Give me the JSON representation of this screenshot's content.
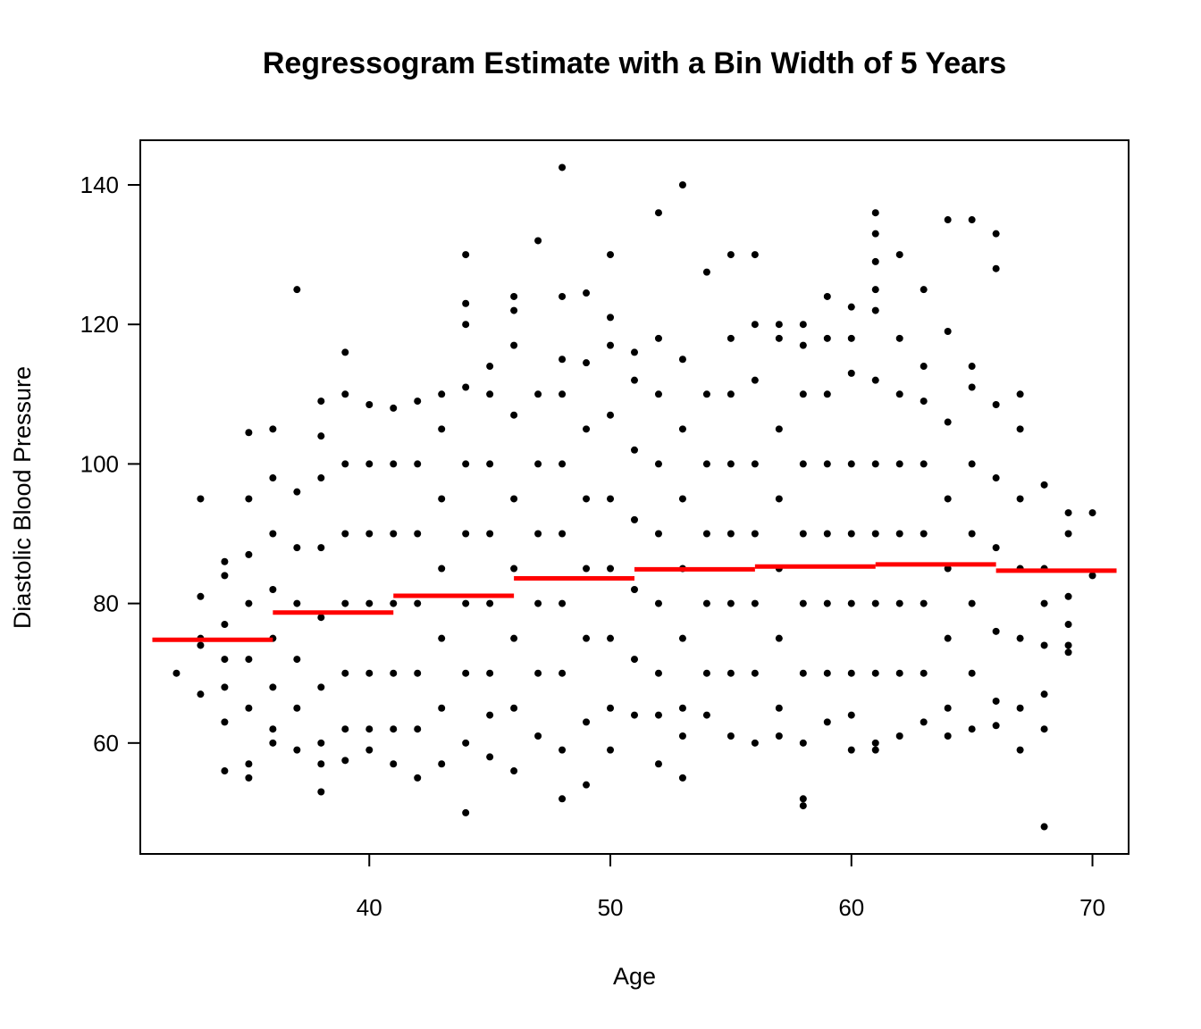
{
  "chart_data": {
    "type": "scatter",
    "title": "Regressogram Estimate with a Bin Width of 5 Years",
    "x_label": "Age",
    "y_label": "Diastolic Blood Pressure",
    "xlim": [
      30.5,
      71.5
    ],
    "ylim": [
      44.1,
      146.4
    ],
    "xticks": [
      40,
      50,
      60,
      70
    ],
    "yticks": [
      60,
      80,
      100,
      120,
      140
    ],
    "points": {
      "color": "#000000",
      "x": [
        32,
        33,
        33,
        33,
        33,
        33,
        34,
        34,
        34,
        34,
        34,
        34,
        34,
        35,
        35,
        35,
        35,
        35,
        35,
        35,
        35,
        36,
        36,
        36,
        36,
        36,
        36,
        36,
        36,
        37,
        37,
        37,
        37,
        37,
        37,
        37,
        38,
        38,
        38,
        38,
        38,
        38,
        38,
        38,
        38,
        39,
        39,
        39,
        39,
        39,
        39,
        39,
        39,
        40,
        40,
        40,
        40,
        40,
        40,
        40,
        41,
        41,
        41,
        41,
        41,
        41,
        41,
        42,
        42,
        42,
        42,
        42,
        42,
        42,
        43,
        43,
        43,
        43,
        43,
        43,
        43,
        44,
        44,
        44,
        44,
        44,
        44,
        44,
        44,
        44,
        44,
        45,
        45,
        45,
        45,
        45,
        45,
        45,
        45,
        46,
        46,
        46,
        46,
        46,
        46,
        46,
        46,
        46,
        47,
        47,
        47,
        47,
        47,
        47,
        47,
        48,
        48,
        48,
        48,
        48,
        48,
        48,
        48,
        48,
        48,
        49,
        49,
        49,
        49,
        49,
        49,
        49,
        49,
        50,
        50,
        50,
        50,
        50,
        50,
        50,
        50,
        50,
        51,
        51,
        51,
        51,
        51,
        51,
        51,
        52,
        52,
        52,
        52,
        52,
        52,
        52,
        52,
        52,
        53,
        53,
        53,
        53,
        53,
        53,
        53,
        53,
        53,
        54,
        54,
        54,
        54,
        54,
        54,
        54,
        55,
        55,
        55,
        55,
        55,
        55,
        55,
        55,
        56,
        56,
        56,
        56,
        56,
        56,
        56,
        56,
        57,
        57,
        57,
        57,
        57,
        57,
        57,
        57,
        58,
        58,
        58,
        58,
        58,
        58,
        58,
        58,
        58,
        58,
        59,
        59,
        59,
        59,
        59,
        59,
        59,
        59,
        60,
        60,
        60,
        60,
        60,
        60,
        60,
        60,
        60,
        61,
        61,
        61,
        61,
        61,
        61,
        61,
        61,
        61,
        61,
        61,
        61,
        62,
        62,
        62,
        62,
        62,
        62,
        62,
        62,
        63,
        63,
        63,
        63,
        63,
        63,
        63,
        63,
        64,
        64,
        64,
        64,
        64,
        64,
        64,
        64,
        65,
        65,
        65,
        65,
        65,
        65,
        65,
        65,
        66,
        66,
        66,
        66,
        66,
        66,
        66,
        66,
        67,
        67,
        67,
        67,
        67,
        67,
        67,
        68,
        68,
        68,
        68,
        68,
        68,
        68,
        69,
        69,
        69,
        69,
        69,
        69,
        70,
        70
      ],
      "y": [
        70,
        95,
        81,
        75,
        74,
        67,
        86,
        84,
        77,
        72,
        68,
        63,
        56,
        104.5,
        95,
        87,
        80,
        72,
        65,
        57,
        55,
        105,
        98,
        90,
        82,
        75,
        68,
        62,
        60,
        125,
        96,
        88,
        80,
        72,
        65,
        59,
        109,
        104,
        98,
        88,
        78,
        68,
        60,
        57,
        53,
        116,
        110,
        100,
        90,
        80,
        70,
        62,
        57.5,
        108.5,
        100,
        90,
        80,
        70,
        62,
        59,
        108,
        100,
        90,
        80,
        70,
        62,
        57,
        109,
        100,
        90,
        80,
        70,
        62,
        55,
        110,
        105,
        95,
        85,
        75,
        65,
        57,
        130,
        123,
        120,
        111,
        100,
        90,
        80,
        70,
        60,
        50,
        114,
        110,
        100,
        90,
        80,
        70,
        64,
        58,
        124,
        122,
        117,
        107,
        95,
        85,
        75,
        65,
        56,
        132,
        110,
        100,
        90,
        80,
        70,
        61,
        142.5,
        124,
        115,
        110,
        100,
        90,
        80,
        70,
        59,
        52,
        124.5,
        114.5,
        105,
        95,
        85,
        75,
        63,
        54,
        130,
        121,
        117,
        107,
        95,
        85,
        75,
        65,
        59,
        116,
        112,
        102,
        92,
        82,
        72,
        64,
        136,
        118,
        110,
        100,
        90,
        80,
        70,
        64,
        57,
        140,
        115,
        105,
        95,
        85,
        75,
        65,
        61,
        55,
        127.5,
        110,
        100,
        90,
        80,
        70,
        64,
        130,
        118,
        110,
        100,
        90,
        80,
        70,
        61,
        130,
        120,
        112,
        100,
        90,
        80,
        70,
        60,
        120,
        118,
        105,
        95,
        85,
        75,
        65,
        61,
        120,
        117,
        110,
        100,
        90,
        80,
        70,
        60,
        52,
        51,
        124,
        118,
        110,
        100,
        90,
        80,
        70,
        63,
        122.5,
        118,
        113,
        100,
        90,
        80,
        70,
        64,
        59,
        136,
        133,
        129,
        125,
        122,
        112,
        100,
        90,
        80,
        70,
        60,
        59,
        130,
        118,
        110,
        100,
        90,
        80,
        70,
        61,
        125,
        114,
        109,
        100,
        90,
        80,
        70,
        63,
        135,
        119,
        106,
        95,
        85,
        75,
        65,
        61,
        135,
        114,
        111,
        100,
        90,
        80,
        70,
        62,
        133,
        128,
        108.5,
        98,
        88,
        76,
        66,
        62.5,
        110,
        105,
        95,
        85,
        75,
        65,
        59,
        97,
        85,
        80,
        74,
        67,
        62,
        48,
        93,
        90,
        81,
        77,
        74,
        73,
        93,
        84
      ]
    },
    "steps": {
      "color": "#ff0000",
      "bins": [
        31,
        36,
        41,
        46,
        51,
        56,
        61,
        66,
        71
      ],
      "values": [
        74.8,
        78.7,
        81.1,
        83.6,
        84.9,
        85.3,
        85.6,
        84.7
      ]
    }
  }
}
